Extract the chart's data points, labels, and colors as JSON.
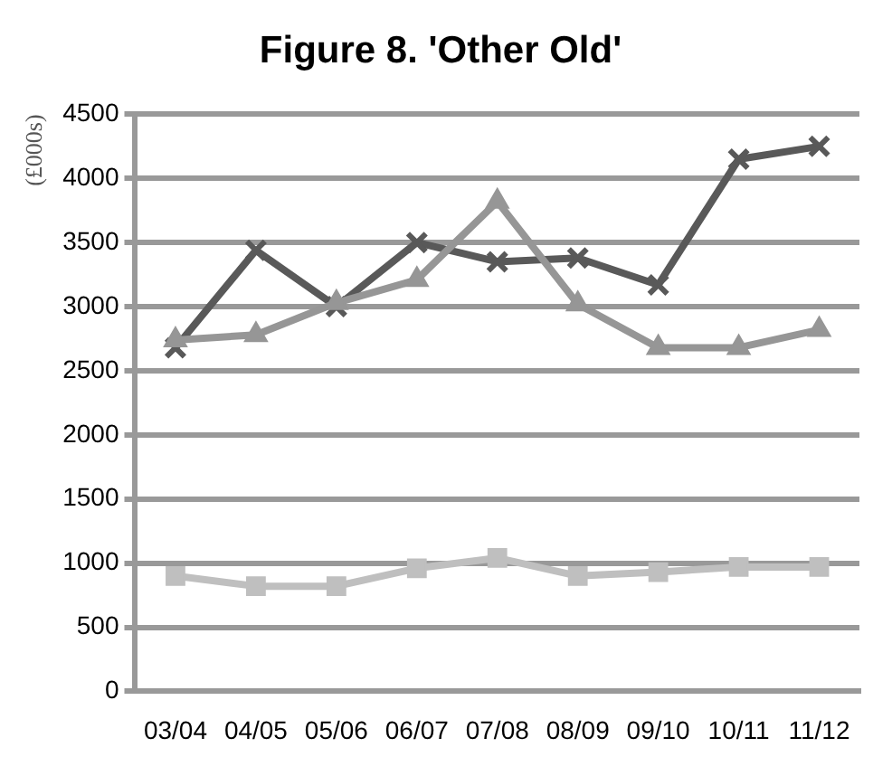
{
  "chart_data": {
    "type": "line",
    "title": "Figure 8. 'Other Old'",
    "ylabel": "(£000s)",
    "categories": [
      "03/04",
      "04/05",
      "05/06",
      "06/07",
      "07/08",
      "08/09",
      "09/10",
      "10/11",
      "11/12"
    ],
    "series": [
      {
        "color": "#bfbfbf",
        "marker": "square",
        "values": [
          900,
          820,
          820,
          960,
          1040,
          900,
          930,
          970,
          970
        ]
      },
      {
        "color": "#969696",
        "marker": "triangle",
        "values": [
          2740,
          2780,
          3030,
          3210,
          3820,
          3020,
          2680,
          2680,
          2820
        ]
      },
      {
        "color": "#595959",
        "marker": "cross",
        "values": [
          2680,
          3440,
          3000,
          3500,
          3350,
          3380,
          3170,
          4150,
          4250
        ]
      }
    ],
    "ylim": [
      0,
      4500
    ],
    "yticks": [
      0,
      500,
      1000,
      1500,
      2000,
      2500,
      3000,
      3500,
      4000,
      4500
    ],
    "grid": "y",
    "legend": false
  }
}
